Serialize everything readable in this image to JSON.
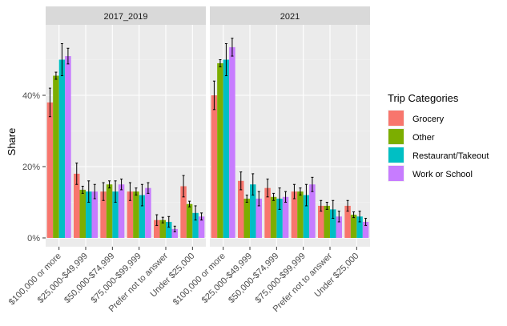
{
  "chart_data": {
    "type": "bar",
    "facets": [
      "2017_2019",
      "2021"
    ],
    "categories": [
      "$100,000 or more",
      "$25,000-$49,999",
      "$50,000-$74,999",
      "$75,000-$99,999",
      "Prefer not to answer",
      "Under $25,000"
    ],
    "ylabel": "Share",
    "xlabel": "",
    "ylim": [
      0,
      0.6
    ],
    "y_ticks": [
      0,
      0.2,
      0.4
    ],
    "y_tick_labels": [
      "0%",
      "20%",
      "40%"
    ],
    "grid": true,
    "legend": {
      "title": "Trip Categories",
      "position": "right"
    },
    "series": [
      {
        "name": "Grocery",
        "color": "#F8766D",
        "values": {
          "2017_2019": [
            0.38,
            0.18,
            0.13,
            0.13,
            0.05,
            0.145
          ],
          "2021": [
            0.4,
            0.16,
            0.14,
            0.13,
            0.09,
            0.09
          ]
        },
        "error": {
          "2017_2019": [
            0.04,
            0.03,
            0.025,
            0.025,
            0.015,
            0.03
          ],
          "2021": [
            0.04,
            0.025,
            0.025,
            0.02,
            0.015,
            0.015
          ]
        }
      },
      {
        "name": "Other",
        "color": "#7CAE00",
        "values": {
          "2017_2019": [
            0.455,
            0.135,
            0.15,
            0.13,
            0.05,
            0.095
          ],
          "2021": [
            0.49,
            0.11,
            0.115,
            0.13,
            0.09,
            0.065
          ]
        },
        "error": {
          "2017_2019": [
            0.01,
            0.01,
            0.01,
            0.01,
            0.008,
            0.008
          ],
          "2021": [
            0.01,
            0.01,
            0.01,
            0.01,
            0.01,
            0.008
          ]
        }
      },
      {
        "name": "Restaurant/Takeout",
        "color": "#00BFC4",
        "values": {
          "2017_2019": [
            0.5,
            0.13,
            0.13,
            0.12,
            0.045,
            0.07
          ],
          "2021": [
            0.5,
            0.15,
            0.11,
            0.12,
            0.08,
            0.06
          ]
        },
        "error": {
          "2017_2019": [
            0.045,
            0.03,
            0.03,
            0.03,
            0.015,
            0.02
          ],
          "2021": [
            0.045,
            0.03,
            0.03,
            0.03,
            0.025,
            0.015
          ]
        }
      },
      {
        "name": "Work or School",
        "color": "#C77CFF",
        "values": {
          "2017_2019": [
            0.51,
            0.13,
            0.15,
            0.14,
            0.025,
            0.06
          ],
          "2021": [
            0.535,
            0.11,
            0.115,
            0.15,
            0.06,
            0.045
          ]
        },
        "error": {
          "2017_2019": [
            0.022,
            0.02,
            0.015,
            0.015,
            0.008,
            0.01
          ],
          "2021": [
            0.025,
            0.02,
            0.015,
            0.02,
            0.015,
            0.01
          ]
        }
      }
    ]
  }
}
